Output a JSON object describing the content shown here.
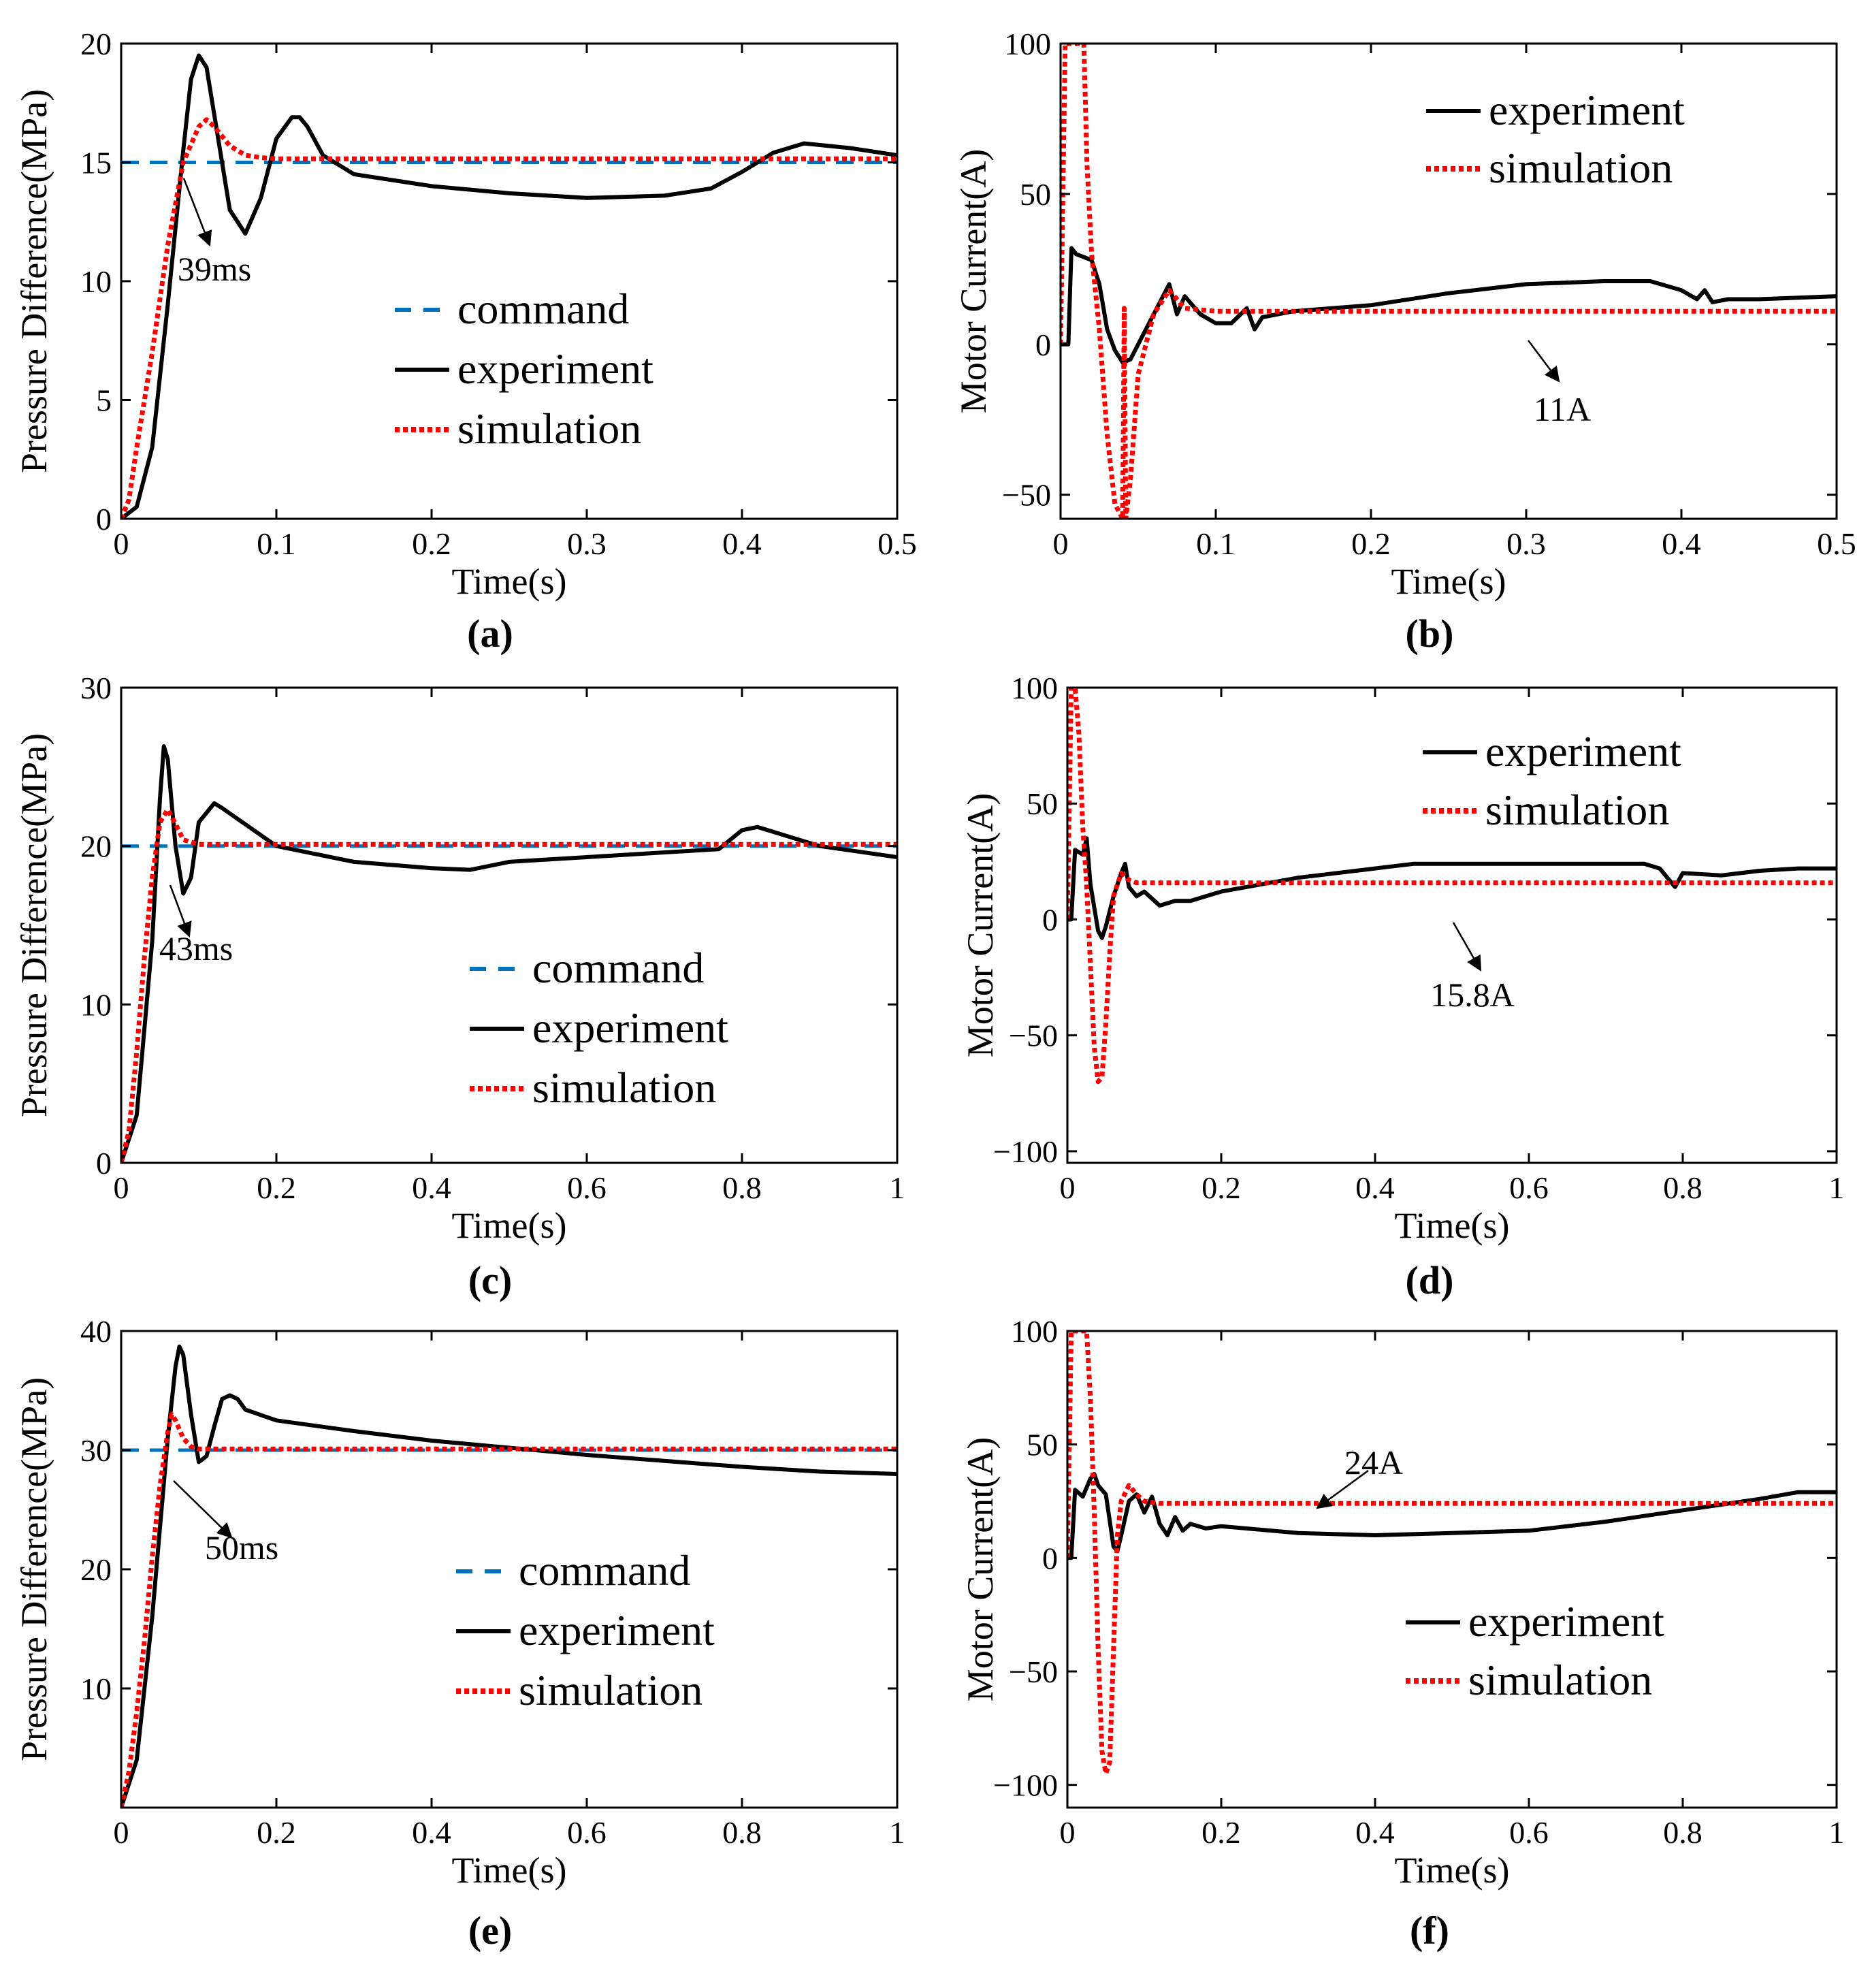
{
  "chart_data": [
    {
      "type": "line",
      "label": "(a)",
      "xlabel": "Time(s)",
      "ylabel": "Pressure Difference(MPa)",
      "xlim": [
        0,
        0.5
      ],
      "ylim": [
        0,
        20
      ],
      "xticks": [
        0,
        0.1,
        0.2,
        0.3,
        0.4,
        0.5
      ],
      "yticks": [
        0,
        5,
        10,
        15,
        20
      ],
      "xtick_labels": [
        "0",
        "0.1",
        "0.2",
        "0.3",
        "0.4",
        "0.5"
      ],
      "ytick_labels": [
        "0",
        "5",
        "10",
        "15",
        "20"
      ],
      "legend_position": "center",
      "annotation": {
        "text": "39ms",
        "x": 0.039,
        "y": 15
      },
      "series": [
        {
          "name": "command",
          "style": "dashed",
          "color": "#0072BD",
          "x": [
            0,
            0.5
          ],
          "y": [
            15,
            15
          ]
        },
        {
          "name": "experiment",
          "style": "solid",
          "color": "#000000",
          "x": [
            0,
            0.01,
            0.02,
            0.03,
            0.04,
            0.045,
            0.05,
            0.055,
            0.06,
            0.07,
            0.08,
            0.09,
            0.1,
            0.11,
            0.115,
            0.12,
            0.13,
            0.15,
            0.2,
            0.25,
            0.3,
            0.35,
            0.38,
            0.4,
            0.42,
            0.44,
            0.47,
            0.5
          ],
          "y": [
            0,
            0.5,
            3,
            9,
            15.5,
            18.5,
            19.5,
            19,
            17,
            13,
            12,
            13.5,
            16,
            16.9,
            16.9,
            16.5,
            15.3,
            14.5,
            14,
            13.7,
            13.5,
            13.6,
            13.9,
            14.6,
            15.4,
            15.8,
            15.6,
            15.3
          ]
        },
        {
          "name": "simulation",
          "style": "dotted",
          "color": "#FF0000",
          "x": [
            0,
            0.005,
            0.01,
            0.02,
            0.03,
            0.04,
            0.05,
            0.055,
            0.06,
            0.07,
            0.08,
            0.09,
            0.1,
            0.15,
            0.2,
            0.3,
            0.4,
            0.5
          ],
          "y": [
            0,
            0.8,
            3,
            7,
            11.5,
            15,
            16.5,
            16.8,
            16.5,
            15.7,
            15.3,
            15.2,
            15.15,
            15.15,
            15.15,
            15.15,
            15.15,
            15.15
          ]
        }
      ]
    },
    {
      "type": "line",
      "label": "(b)",
      "xlabel": "Time(s)",
      "ylabel": "Motor Current(A)",
      "xlim": [
        0,
        0.5
      ],
      "ylim": [
        -58,
        100
      ],
      "xticks": [
        0,
        0.1,
        0.2,
        0.3,
        0.4,
        0.5
      ],
      "yticks": [
        -50,
        0,
        50,
        100
      ],
      "xtick_labels": [
        "0",
        "0.1",
        "0.2",
        "0.3",
        "0.4",
        "0.5"
      ],
      "ytick_labels": [
        "−50",
        "0",
        "50",
        "100"
      ],
      "legend_position": "top-right",
      "annotation": {
        "text": "11A",
        "x": 0.3,
        "y": 11
      },
      "series": [
        {
          "name": "experiment",
          "style": "solid",
          "color": "#000000",
          "x": [
            0,
            0.005,
            0.007,
            0.01,
            0.02,
            0.025,
            0.03,
            0.035,
            0.04,
            0.045,
            0.05,
            0.06,
            0.07,
            0.075,
            0.08,
            0.09,
            0.1,
            0.11,
            0.12,
            0.125,
            0.13,
            0.14,
            0.15,
            0.2,
            0.25,
            0.3,
            0.35,
            0.38,
            0.4,
            0.41,
            0.415,
            0.42,
            0.43,
            0.45,
            0.5
          ],
          "y": [
            0,
            0,
            32,
            30,
            28,
            20,
            5,
            -2,
            -6,
            -5,
            0,
            10,
            20,
            10,
            16,
            10,
            7,
            7,
            12,
            5,
            9,
            10,
            11,
            13,
            17,
            20,
            21,
            21,
            18,
            15,
            18,
            14,
            15,
            15,
            16
          ]
        },
        {
          "name": "simulation",
          "style": "dotted",
          "color": "#FF0000",
          "x": [
            0,
            0.003,
            0.005,
            0.015,
            0.017,
            0.02,
            0.025,
            0.03,
            0.035,
            0.04,
            0.041,
            0.042,
            0.045,
            0.05,
            0.06,
            0.07,
            0.08,
            0.1,
            0.2,
            0.3,
            0.4,
            0.5
          ],
          "y": [
            0,
            100,
            100,
            100,
            60,
            30,
            5,
            -30,
            -53,
            -58,
            12,
            -58,
            -45,
            -10,
            10,
            18,
            12,
            11,
            11,
            11,
            11,
            11
          ]
        }
      ]
    },
    {
      "type": "line",
      "label": "(c)",
      "xlabel": "Time(s)",
      "ylabel": "Pressure Difference(MPa)",
      "xlim": [
        0,
        1
      ],
      "ylim": [
        0,
        30
      ],
      "xticks": [
        0,
        0.2,
        0.4,
        0.6,
        0.8,
        1
      ],
      "yticks": [
        0,
        10,
        20,
        30
      ],
      "xtick_labels": [
        "0",
        "0.2",
        "0.4",
        "0.6",
        "0.8",
        "1"
      ],
      "ytick_labels": [
        "0",
        "10",
        "20",
        "30"
      ],
      "legend_position": "bottom-right",
      "annotation": {
        "text": "43ms",
        "x": 0.043,
        "y": 20
      },
      "series": [
        {
          "name": "command",
          "style": "dashed",
          "color": "#0072BD",
          "x": [
            0,
            1
          ],
          "y": [
            20,
            20
          ]
        },
        {
          "name": "experiment",
          "style": "solid",
          "color": "#000000",
          "x": [
            0,
            0.02,
            0.04,
            0.05,
            0.055,
            0.06,
            0.07,
            0.08,
            0.09,
            0.1,
            0.12,
            0.13,
            0.2,
            0.3,
            0.4,
            0.45,
            0.5,
            0.6,
            0.7,
            0.77,
            0.8,
            0.82,
            0.9,
            1
          ],
          "y": [
            0,
            3,
            14,
            23,
            26.3,
            25.5,
            20,
            17,
            18,
            21.5,
            22.7,
            22.4,
            20,
            19,
            18.6,
            18.5,
            19,
            19.3,
            19.6,
            19.8,
            21,
            21.2,
            20,
            19.3
          ]
        },
        {
          "name": "simulation",
          "style": "dotted",
          "color": "#FF0000",
          "x": [
            0,
            0.01,
            0.02,
            0.03,
            0.04,
            0.05,
            0.06,
            0.07,
            0.08,
            0.1,
            0.2,
            0.5,
            1
          ],
          "y": [
            0,
            2,
            7,
            13,
            18,
            21.5,
            22.3,
            21.4,
            20.4,
            20.1,
            20.1,
            20.1,
            20.1
          ]
        }
      ]
    },
    {
      "type": "line",
      "label": "(d)",
      "xlabel": "Time(s)",
      "ylabel": "Motor Current(A)",
      "xlim": [
        0,
        1
      ],
      "ylim": [
        -105,
        100
      ],
      "xticks": [
        0,
        0.2,
        0.4,
        0.6,
        0.8,
        1
      ],
      "yticks": [
        -100,
        -50,
        0,
        50,
        100
      ],
      "xtick_labels": [
        "0",
        "0.2",
        "0.4",
        "0.6",
        "0.8",
        "1"
      ],
      "ytick_labels": [
        "−100",
        "−50",
        "0",
        "50",
        "100"
      ],
      "legend_position": "top-right",
      "annotation": {
        "text": "15.8A",
        "x": 0.5,
        "y": 15.8
      },
      "series": [
        {
          "name": "experiment",
          "style": "solid",
          "color": "#000000",
          "x": [
            0,
            0.005,
            0.01,
            0.02,
            0.025,
            0.03,
            0.04,
            0.045,
            0.05,
            0.06,
            0.07,
            0.075,
            0.08,
            0.09,
            0.1,
            0.12,
            0.14,
            0.16,
            0.2,
            0.3,
            0.4,
            0.45,
            0.6,
            0.7,
            0.75,
            0.77,
            0.78,
            0.79,
            0.8,
            0.85,
            0.9,
            0.95,
            1
          ],
          "y": [
            0,
            0,
            30,
            28,
            35,
            15,
            -5,
            -8,
            -3,
            10,
            20,
            24,
            14,
            10,
            12,
            6,
            8,
            8,
            12,
            18,
            22,
            24,
            24,
            24,
            24,
            22,
            18,
            14,
            20,
            19,
            21,
            22,
            22
          ]
        },
        {
          "name": "simulation",
          "style": "dotted",
          "color": "#FF0000",
          "x": [
            0,
            0.005,
            0.01,
            0.015,
            0.02,
            0.025,
            0.03,
            0.035,
            0.04,
            0.045,
            0.05,
            0.055,
            0.06,
            0.07,
            0.08,
            0.09,
            0.1,
            0.2,
            0.5,
            1
          ],
          "y": [
            0,
            100,
            100,
            80,
            40,
            15,
            -20,
            -55,
            -70,
            -68,
            -45,
            -15,
            10,
            20,
            17,
            15.8,
            15.8,
            15.8,
            15.8,
            15.8
          ]
        }
      ]
    },
    {
      "type": "line",
      "label": "(e)",
      "xlabel": "Time(s)",
      "ylabel": "Pressure Difference(MPa)",
      "xlim": [
        0,
        1
      ],
      "ylim": [
        0,
        40
      ],
      "xticks": [
        0,
        0.2,
        0.4,
        0.6,
        0.8,
        1
      ],
      "yticks": [
        10,
        20,
        30,
        40
      ],
      "xtick_labels": [
        "0",
        "0.2",
        "0.4",
        "0.6",
        "0.8",
        "1"
      ],
      "ytick_labels": [
        "10",
        "20",
        "30",
        "40"
      ],
      "legend_position": "bottom-right",
      "annotation": {
        "text": "50ms",
        "x": 0.05,
        "y": 30
      },
      "series": [
        {
          "name": "command",
          "style": "dashed",
          "color": "#0072BD",
          "x": [
            0,
            1
          ],
          "y": [
            30,
            30
          ]
        },
        {
          "name": "experiment",
          "style": "solid",
          "color": "#000000",
          "x": [
            0,
            0.02,
            0.04,
            0.06,
            0.07,
            0.075,
            0.08,
            0.09,
            0.1,
            0.11,
            0.12,
            0.13,
            0.14,
            0.15,
            0.16,
            0.2,
            0.3,
            0.4,
            0.5,
            0.6,
            0.7,
            0.8,
            0.9,
            1
          ],
          "y": [
            0,
            4,
            16,
            31,
            37,
            38.7,
            38,
            33,
            29,
            29.5,
            32,
            34.3,
            34.6,
            34.3,
            33.4,
            32.5,
            31.6,
            30.8,
            30.2,
            29.6,
            29.1,
            28.6,
            28.2,
            28
          ]
        },
        {
          "name": "simulation",
          "style": "dotted",
          "color": "#FF0000",
          "x": [
            0,
            0.01,
            0.02,
            0.03,
            0.04,
            0.05,
            0.06,
            0.065,
            0.07,
            0.08,
            0.09,
            0.1,
            0.12,
            0.2,
            0.5,
            1
          ],
          "y": [
            0,
            3,
            8,
            14,
            21,
            27,
            31.5,
            33,
            32.5,
            31,
            30.3,
            30.1,
            30.1,
            30.1,
            30.1,
            30.1
          ]
        }
      ]
    },
    {
      "type": "line",
      "label": "(f)",
      "xlabel": "Time(s)",
      "ylabel": "Motor Current(A)",
      "xlim": [
        0,
        1
      ],
      "ylim": [
        -110,
        100
      ],
      "xticks": [
        0,
        0.2,
        0.4,
        0.6,
        0.8,
        1
      ],
      "yticks": [
        -100,
        -50,
        0,
        50,
        100
      ],
      "xtick_labels": [
        "0",
        "0.2",
        "0.4",
        "0.6",
        "0.8",
        "1"
      ],
      "ytick_labels": [
        "−100",
        "−50",
        "0",
        "50",
        "100"
      ],
      "legend_position": "bottom-right",
      "annotation": {
        "text": "24A",
        "x": 0.5,
        "y": 24
      },
      "series": [
        {
          "name": "experiment",
          "style": "solid",
          "color": "#000000",
          "x": [
            0,
            0.005,
            0.01,
            0.02,
            0.03,
            0.035,
            0.04,
            0.05,
            0.06,
            0.065,
            0.07,
            0.08,
            0.09,
            0.1,
            0.11,
            0.12,
            0.13,
            0.14,
            0.15,
            0.16,
            0.18,
            0.2,
            0.3,
            0.4,
            0.5,
            0.6,
            0.7,
            0.8,
            0.9,
            0.95,
            1
          ],
          "y": [
            0,
            0,
            30,
            27,
            35,
            37,
            32,
            28,
            5,
            3,
            10,
            25,
            28,
            20,
            27,
            15,
            10,
            18,
            12,
            15,
            13,
            14,
            11,
            10,
            11,
            12,
            16,
            21,
            26,
            29,
            29
          ]
        },
        {
          "name": "simulation",
          "style": "dotted",
          "color": "#FF0000",
          "x": [
            0,
            0.005,
            0.01,
            0.025,
            0.03,
            0.035,
            0.04,
            0.045,
            0.05,
            0.055,
            0.06,
            0.065,
            0.07,
            0.08,
            0.09,
            0.1,
            0.12,
            0.2,
            0.5,
            1
          ],
          "y": [
            0,
            100,
            100,
            100,
            70,
            20,
            -40,
            -85,
            -95,
            -90,
            -40,
            10,
            25,
            32,
            28,
            25,
            24,
            24,
            24,
            24
          ]
        }
      ]
    }
  ]
}
